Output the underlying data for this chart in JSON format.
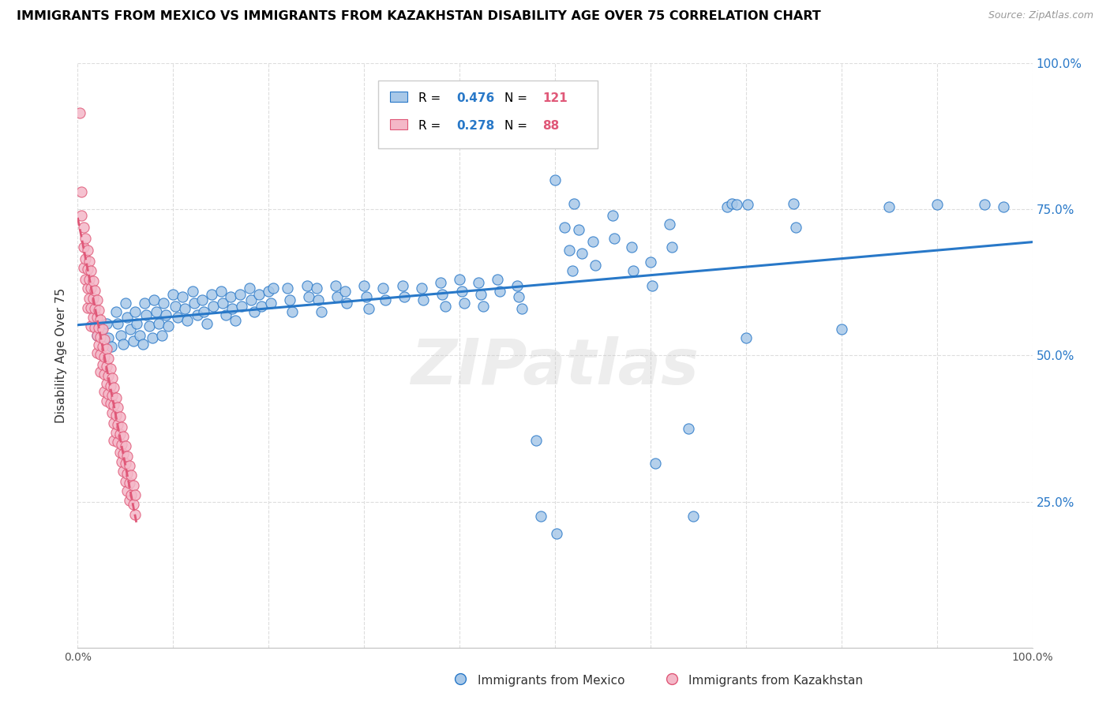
{
  "title": "IMMIGRANTS FROM MEXICO VS IMMIGRANTS FROM KAZAKHSTAN DISABILITY AGE OVER 75 CORRELATION CHART",
  "source": "Source: ZipAtlas.com",
  "ylabel": "Disability Age Over 75",
  "xlim": [
    0,
    1.0
  ],
  "ylim": [
    0,
    1.0
  ],
  "ytick_positions": [
    0.25,
    0.5,
    0.75,
    1.0
  ],
  "xtick_positions": [
    0.0,
    0.1,
    0.2,
    0.3,
    0.4,
    0.5,
    0.6,
    0.7,
    0.8,
    0.9,
    1.0
  ],
  "r_blue": 0.476,
  "n_blue": 121,
  "r_pink": 0.278,
  "n_pink": 88,
  "blue_color": "#a8c8e8",
  "pink_color": "#f4b8c8",
  "trend_blue_color": "#2878c8",
  "trend_pink_color": "#e05878",
  "legend_r_color": "#2878c8",
  "legend_n_color": "#e05878",
  "watermark": "ZIPatlas",
  "blue_points": [
    [
      0.02,
      0.535
    ],
    [
      0.025,
      0.545
    ],
    [
      0.03,
      0.555
    ],
    [
      0.032,
      0.53
    ],
    [
      0.035,
      0.515
    ],
    [
      0.04,
      0.575
    ],
    [
      0.042,
      0.555
    ],
    [
      0.045,
      0.535
    ],
    [
      0.048,
      0.52
    ],
    [
      0.05,
      0.59
    ],
    [
      0.052,
      0.565
    ],
    [
      0.055,
      0.545
    ],
    [
      0.058,
      0.525
    ],
    [
      0.06,
      0.575
    ],
    [
      0.062,
      0.555
    ],
    [
      0.065,
      0.535
    ],
    [
      0.068,
      0.52
    ],
    [
      0.07,
      0.59
    ],
    [
      0.072,
      0.57
    ],
    [
      0.075,
      0.55
    ],
    [
      0.078,
      0.53
    ],
    [
      0.08,
      0.595
    ],
    [
      0.082,
      0.575
    ],
    [
      0.085,
      0.555
    ],
    [
      0.088,
      0.535
    ],
    [
      0.09,
      0.59
    ],
    [
      0.092,
      0.57
    ],
    [
      0.095,
      0.55
    ],
    [
      0.1,
      0.605
    ],
    [
      0.102,
      0.585
    ],
    [
      0.105,
      0.565
    ],
    [
      0.11,
      0.6
    ],
    [
      0.112,
      0.58
    ],
    [
      0.115,
      0.56
    ],
    [
      0.12,
      0.61
    ],
    [
      0.122,
      0.59
    ],
    [
      0.125,
      0.57
    ],
    [
      0.13,
      0.595
    ],
    [
      0.132,
      0.575
    ],
    [
      0.135,
      0.555
    ],
    [
      0.14,
      0.605
    ],
    [
      0.142,
      0.585
    ],
    [
      0.15,
      0.61
    ],
    [
      0.152,
      0.59
    ],
    [
      0.155,
      0.57
    ],
    [
      0.16,
      0.6
    ],
    [
      0.162,
      0.58
    ],
    [
      0.165,
      0.56
    ],
    [
      0.17,
      0.605
    ],
    [
      0.172,
      0.585
    ],
    [
      0.18,
      0.615
    ],
    [
      0.182,
      0.595
    ],
    [
      0.185,
      0.575
    ],
    [
      0.19,
      0.605
    ],
    [
      0.192,
      0.585
    ],
    [
      0.2,
      0.61
    ],
    [
      0.202,
      0.59
    ],
    [
      0.205,
      0.615
    ],
    [
      0.22,
      0.615
    ],
    [
      0.222,
      0.595
    ],
    [
      0.225,
      0.575
    ],
    [
      0.24,
      0.62
    ],
    [
      0.242,
      0.6
    ],
    [
      0.25,
      0.615
    ],
    [
      0.252,
      0.595
    ],
    [
      0.255,
      0.575
    ],
    [
      0.27,
      0.62
    ],
    [
      0.272,
      0.6
    ],
    [
      0.28,
      0.61
    ],
    [
      0.282,
      0.59
    ],
    [
      0.3,
      0.62
    ],
    [
      0.302,
      0.6
    ],
    [
      0.305,
      0.58
    ],
    [
      0.32,
      0.615
    ],
    [
      0.322,
      0.595
    ],
    [
      0.34,
      0.62
    ],
    [
      0.342,
      0.6
    ],
    [
      0.36,
      0.615
    ],
    [
      0.362,
      0.595
    ],
    [
      0.38,
      0.625
    ],
    [
      0.382,
      0.605
    ],
    [
      0.385,
      0.585
    ],
    [
      0.4,
      0.63
    ],
    [
      0.402,
      0.61
    ],
    [
      0.405,
      0.59
    ],
    [
      0.42,
      0.625
    ],
    [
      0.422,
      0.605
    ],
    [
      0.425,
      0.585
    ],
    [
      0.44,
      0.63
    ],
    [
      0.442,
      0.61
    ],
    [
      0.46,
      0.62
    ],
    [
      0.462,
      0.6
    ],
    [
      0.465,
      0.58
    ],
    [
      0.48,
      0.355
    ],
    [
      0.485,
      0.225
    ],
    [
      0.5,
      0.8
    ],
    [
      0.502,
      0.195
    ],
    [
      0.51,
      0.72
    ],
    [
      0.515,
      0.68
    ],
    [
      0.518,
      0.645
    ],
    [
      0.52,
      0.76
    ],
    [
      0.525,
      0.715
    ],
    [
      0.528,
      0.675
    ],
    [
      0.54,
      0.695
    ],
    [
      0.542,
      0.655
    ],
    [
      0.56,
      0.74
    ],
    [
      0.562,
      0.7
    ],
    [
      0.58,
      0.685
    ],
    [
      0.582,
      0.645
    ],
    [
      0.6,
      0.66
    ],
    [
      0.602,
      0.62
    ],
    [
      0.605,
      0.315
    ],
    [
      0.62,
      0.725
    ],
    [
      0.622,
      0.685
    ],
    [
      0.64,
      0.375
    ],
    [
      0.645,
      0.225
    ],
    [
      0.68,
      0.755
    ],
    [
      0.685,
      0.76
    ],
    [
      0.69,
      0.758
    ],
    [
      0.7,
      0.53
    ],
    [
      0.702,
      0.758
    ],
    [
      0.75,
      0.76
    ],
    [
      0.752,
      0.72
    ],
    [
      0.8,
      0.545
    ],
    [
      0.85,
      0.755
    ],
    [
      0.9,
      0.758
    ],
    [
      0.95,
      0.758
    ],
    [
      0.97,
      0.755
    ]
  ],
  "pink_points": [
    [
      0.002,
      0.915
    ],
    [
      0.004,
      0.78
    ],
    [
      0.004,
      0.74
    ],
    [
      0.006,
      0.72
    ],
    [
      0.006,
      0.685
    ],
    [
      0.006,
      0.65
    ],
    [
      0.008,
      0.7
    ],
    [
      0.008,
      0.665
    ],
    [
      0.008,
      0.63
    ],
    [
      0.01,
      0.68
    ],
    [
      0.01,
      0.648
    ],
    [
      0.01,
      0.615
    ],
    [
      0.01,
      0.582
    ],
    [
      0.012,
      0.662
    ],
    [
      0.012,
      0.63
    ],
    [
      0.012,
      0.598
    ],
    [
      0.014,
      0.645
    ],
    [
      0.014,
      0.615
    ],
    [
      0.014,
      0.582
    ],
    [
      0.014,
      0.55
    ],
    [
      0.016,
      0.628
    ],
    [
      0.016,
      0.598
    ],
    [
      0.016,
      0.565
    ],
    [
      0.018,
      0.612
    ],
    [
      0.018,
      0.58
    ],
    [
      0.018,
      0.548
    ],
    [
      0.02,
      0.595
    ],
    [
      0.02,
      0.565
    ],
    [
      0.02,
      0.535
    ],
    [
      0.02,
      0.505
    ],
    [
      0.022,
      0.578
    ],
    [
      0.022,
      0.548
    ],
    [
      0.022,
      0.518
    ],
    [
      0.024,
      0.562
    ],
    [
      0.024,
      0.532
    ],
    [
      0.024,
      0.502
    ],
    [
      0.024,
      0.472
    ],
    [
      0.026,
      0.545
    ],
    [
      0.026,
      0.515
    ],
    [
      0.026,
      0.485
    ],
    [
      0.028,
      0.528
    ],
    [
      0.028,
      0.498
    ],
    [
      0.028,
      0.468
    ],
    [
      0.028,
      0.438
    ],
    [
      0.03,
      0.512
    ],
    [
      0.03,
      0.482
    ],
    [
      0.03,
      0.452
    ],
    [
      0.03,
      0.422
    ],
    [
      0.032,
      0.495
    ],
    [
      0.032,
      0.465
    ],
    [
      0.032,
      0.435
    ],
    [
      0.034,
      0.478
    ],
    [
      0.034,
      0.448
    ],
    [
      0.034,
      0.418
    ],
    [
      0.036,
      0.462
    ],
    [
      0.036,
      0.432
    ],
    [
      0.036,
      0.402
    ],
    [
      0.038,
      0.445
    ],
    [
      0.038,
      0.415
    ],
    [
      0.038,
      0.385
    ],
    [
      0.038,
      0.355
    ],
    [
      0.04,
      0.428
    ],
    [
      0.04,
      0.398
    ],
    [
      0.04,
      0.368
    ],
    [
      0.042,
      0.412
    ],
    [
      0.042,
      0.382
    ],
    [
      0.042,
      0.352
    ],
    [
      0.044,
      0.395
    ],
    [
      0.044,
      0.365
    ],
    [
      0.044,
      0.335
    ],
    [
      0.046,
      0.378
    ],
    [
      0.046,
      0.348
    ],
    [
      0.046,
      0.318
    ],
    [
      0.048,
      0.362
    ],
    [
      0.048,
      0.332
    ],
    [
      0.048,
      0.302
    ],
    [
      0.05,
      0.345
    ],
    [
      0.05,
      0.315
    ],
    [
      0.05,
      0.285
    ],
    [
      0.052,
      0.328
    ],
    [
      0.052,
      0.298
    ],
    [
      0.052,
      0.268
    ],
    [
      0.054,
      0.312
    ],
    [
      0.054,
      0.282
    ],
    [
      0.054,
      0.252
    ],
    [
      0.056,
      0.295
    ],
    [
      0.056,
      0.262
    ],
    [
      0.058,
      0.278
    ],
    [
      0.058,
      0.245
    ],
    [
      0.06,
      0.262
    ],
    [
      0.06,
      0.228
    ]
  ],
  "grid_color": "#dddddd",
  "spine_color": "#cccccc"
}
